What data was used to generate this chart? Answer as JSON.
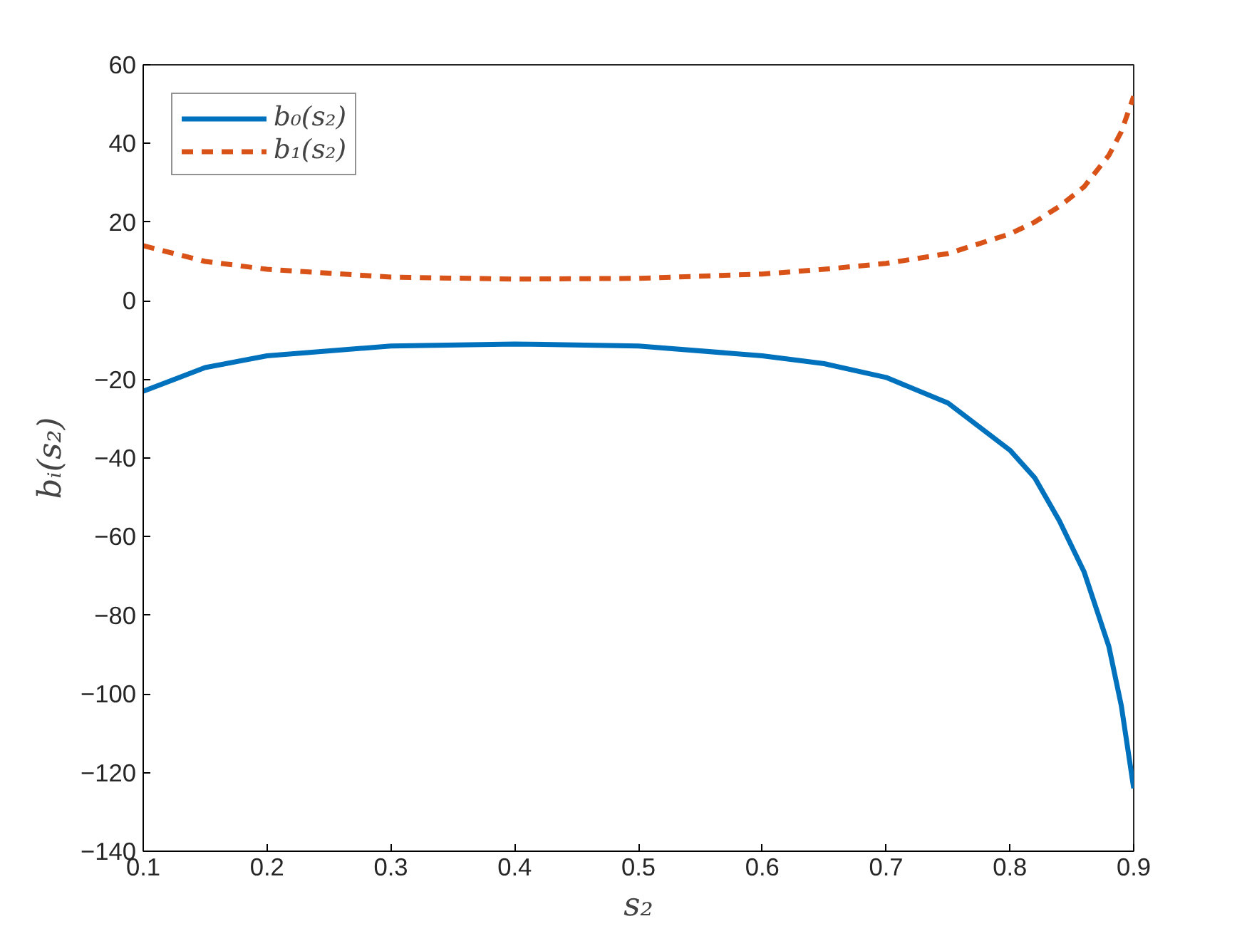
{
  "chart_data": {
    "type": "line",
    "xlabel": "s₂",
    "ylabel": "bᵢ(s₂)",
    "x": [
      0.1,
      0.15,
      0.2,
      0.3,
      0.4,
      0.5,
      0.6,
      0.65,
      0.7,
      0.75,
      0.8,
      0.82,
      0.84,
      0.86,
      0.88,
      0.89,
      0.9
    ],
    "series": [
      {
        "name": "b₀(s₂)",
        "color": "#0072bd",
        "line_style": "solid",
        "values": [
          -23,
          -17,
          -14,
          -11.5,
          -11,
          -11.5,
          -14,
          -16,
          -19.5,
          -26,
          -38,
          -45,
          -56,
          -69,
          -88,
          -103,
          -124
        ]
      },
      {
        "name": "b₁(s₂)",
        "color": "#d95319",
        "line_style": "dashed",
        "values": [
          14,
          10,
          8,
          6,
          5.5,
          5.7,
          6.8,
          8,
          9.5,
          12,
          17,
          20,
          24,
          29,
          37,
          43,
          52
        ]
      }
    ],
    "xlim": [
      0.1,
      0.9
    ],
    "ylim": [
      -140,
      60
    ],
    "xticks": [
      0.1,
      0.2,
      0.3,
      0.4,
      0.5,
      0.6,
      0.7,
      0.8,
      0.9
    ],
    "yticks": [
      -140,
      -120,
      -100,
      -80,
      -60,
      -40,
      -20,
      0,
      20,
      40,
      60
    ],
    "grid": false,
    "legend": "top left"
  }
}
